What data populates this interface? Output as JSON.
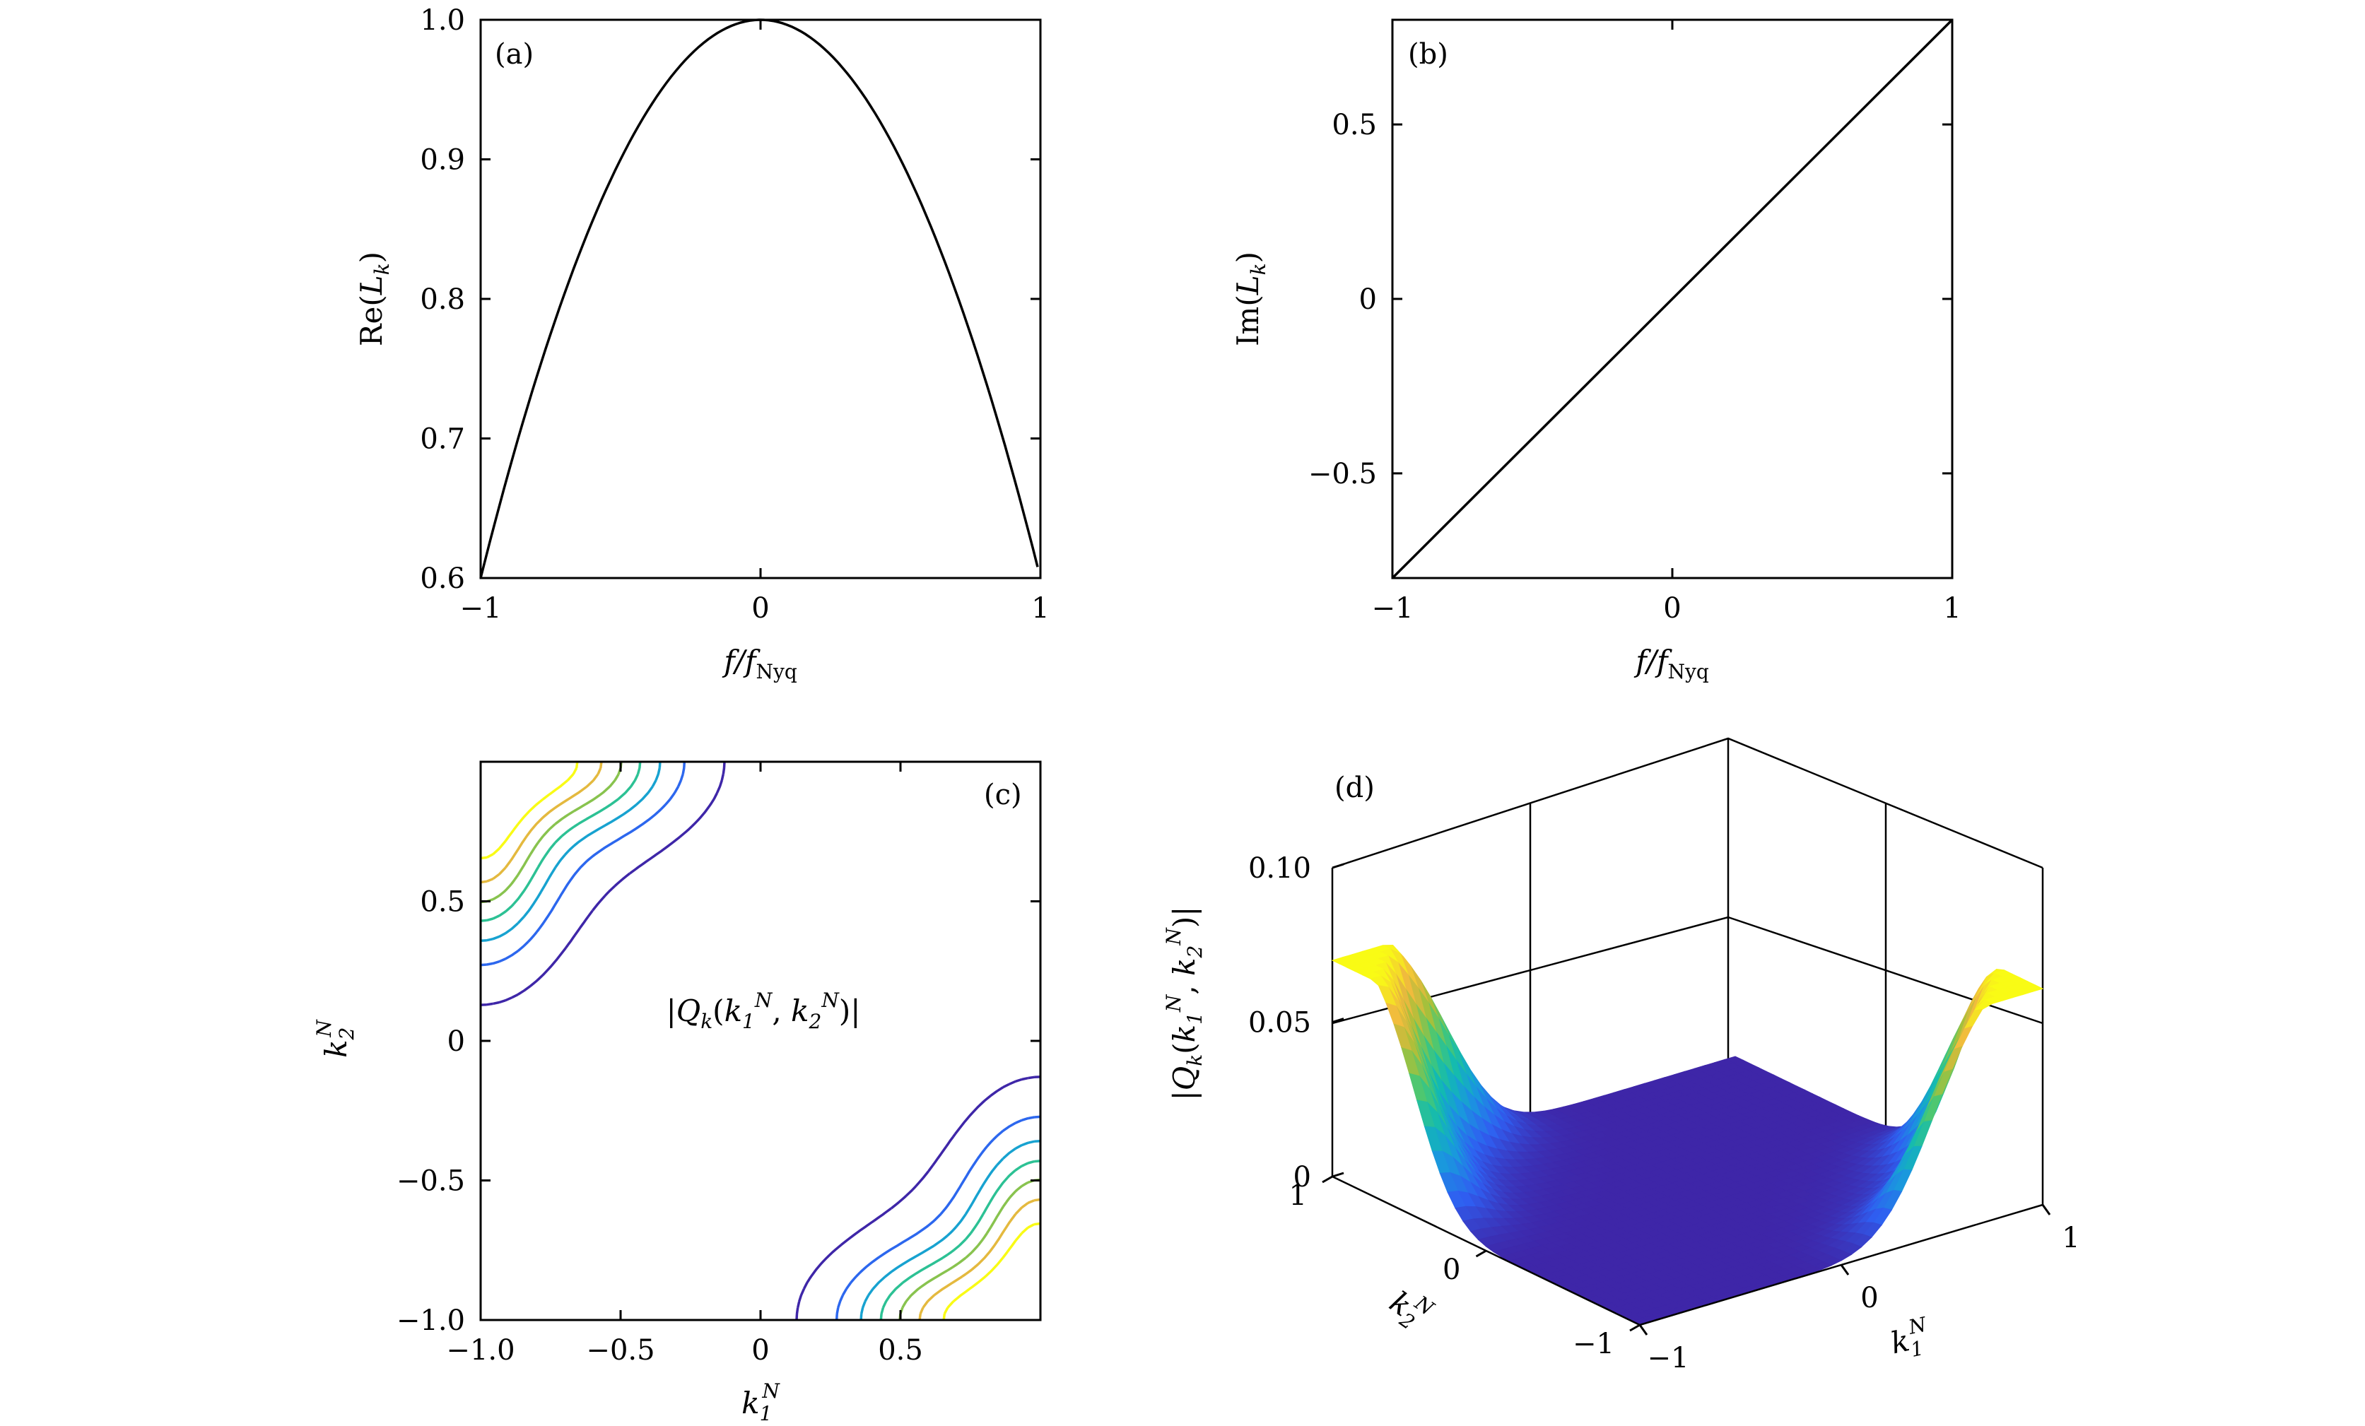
{
  "chart_data": [
    {
      "panel": "(a)",
      "type": "line",
      "xlabel": "f/f_Nyq",
      "ylabel": "Re(L_k)",
      "xlim": [
        -1,
        1
      ],
      "ylim": [
        0.6,
        1.0
      ],
      "xticks": [
        "−1",
        "0",
        "1"
      ],
      "yticks": [
        "0.6",
        "0.7",
        "0.8",
        "0.9",
        "1.0"
      ],
      "x": [
        -1.0,
        -0.75,
        -0.5,
        -0.25,
        0.0,
        0.25,
        0.5,
        0.75,
        0.99
      ],
      "y": [
        0.6,
        0.775,
        0.9,
        0.975,
        1.0,
        0.975,
        0.9,
        0.775,
        0.612
      ]
    },
    {
      "panel": "(b)",
      "type": "line",
      "xlabel": "f/f_Nyq",
      "ylabel": "Im(L_k)",
      "xlim": [
        -1,
        1
      ],
      "ylim": [
        -0.8,
        0.8
      ],
      "xticks": [
        "−1",
        "0",
        "1"
      ],
      "yticks": [
        "−0.5",
        "0",
        "0.5"
      ],
      "x": [
        -1.0,
        0.0,
        1.0
      ],
      "y": [
        -0.8,
        0.0,
        0.8
      ]
    },
    {
      "panel": "(c)",
      "type": "heatmap",
      "xlabel": "k_1^N",
      "ylabel": "k_2^N",
      "annotation": "|Q_k(k_1^N, k_2^N)|",
      "xlim": [
        -1,
        1
      ],
      "ylim": [
        -1,
        1
      ],
      "xticks": [
        "−1.0",
        "−0.5",
        "0",
        "0.5"
      ],
      "yticks": [
        "−1.0",
        "−0.5",
        "0",
        "0.5"
      ],
      "contour_levels": [
        0.005,
        0.015,
        0.025,
        0.035,
        0.045,
        0.055,
        0.065
      ]
    },
    {
      "panel": "(d)",
      "type": "heatmap",
      "xlabel": "k_1^N",
      "ylabel": "k_2^N",
      "zlabel": "|Q_k(k_1^N, k_2^N)|",
      "zticks": [
        "0",
        "0.05",
        "0.10"
      ],
      "x_ticks": [
        "−1",
        "0",
        "1"
      ],
      "y_ticks": [
        "−1",
        "0",
        "1"
      ],
      "zlim": [
        0,
        0.1
      ]
    }
  ],
  "colors": {
    "line": "#000000",
    "colormap": [
      "#3e26a8",
      "#2f5ef1",
      "#1a96df",
      "#12bab2",
      "#46c875",
      "#a9c03a",
      "#f0b83f",
      "#f9fb15"
    ]
  }
}
